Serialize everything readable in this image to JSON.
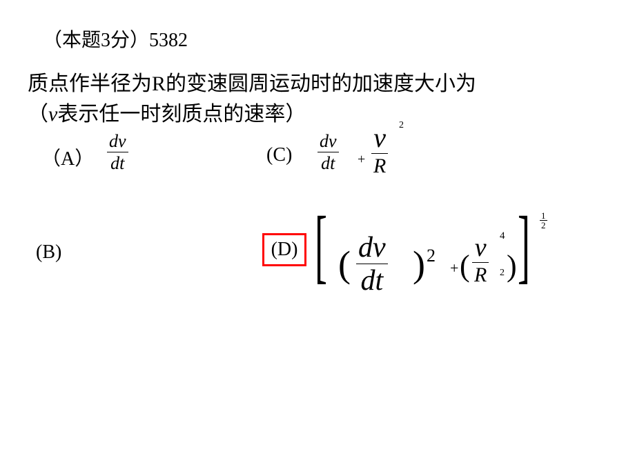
{
  "header": "（本题3分）5382",
  "question_line1": "质点作半径为R的变速圆周运动时的加速度大小为",
  "question_line2_pre": "（",
  "question_line2_v": "v",
  "question_line2_post": "表示任一时刻质点的速率）",
  "options": {
    "A": {
      "label": "（A）"
    },
    "B": {
      "label": "(B)"
    },
    "C": {
      "label": "(C)"
    },
    "D": {
      "label": "(D)"
    }
  },
  "math": {
    "dv": "dv",
    "dt": "dt",
    "v": "v",
    "R": "R",
    "plus": "+",
    "two": "2",
    "four": "4",
    "one": "1",
    "lparen": "(",
    "rparen": ")",
    "lbracket": "[",
    "rbracket": "]"
  },
  "colors": {
    "text": "#000000",
    "highlight_border": "#ff0000",
    "background": "#ffffff"
  },
  "font_sizes": {
    "body": 30,
    "header": 28,
    "option_label": 28,
    "frac_small": 26,
    "frac_large": 42,
    "superscript": 14
  },
  "correct_answer": "D"
}
